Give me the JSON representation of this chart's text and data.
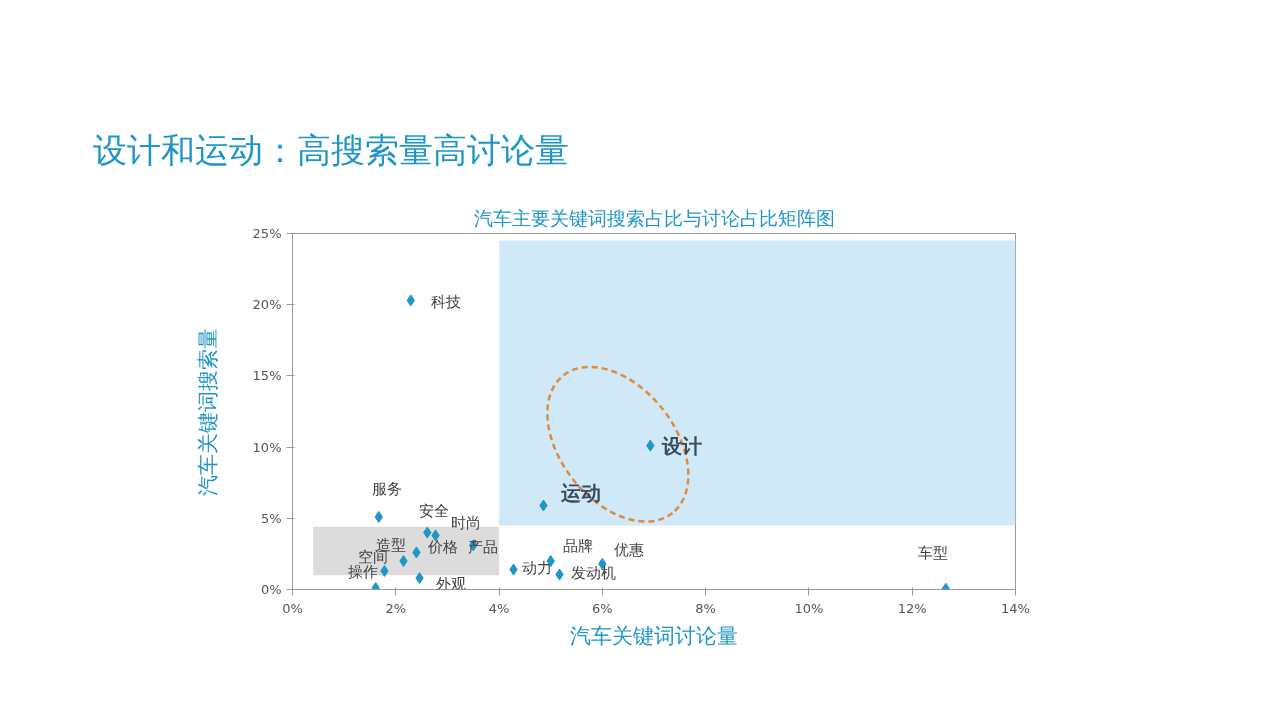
{
  "chart_data": {
    "type": "scatter",
    "title": "设计和运动：高搜索量高讨论量",
    "subtitle": "汽车主要关键词搜索占比与讨论占比矩阵图",
    "xlabel": "汽车关键词讨论量",
    "ylabel": "汽车关键词搜索量",
    "x": [
      2.29,
      6.93,
      4.86,
      1.67,
      2.61,
      2.77,
      3.5,
      2.4,
      2.15,
      1.78,
      1.61,
      2.46,
      4.28,
      5.0,
      5.17,
      6.0,
      12.65
    ],
    "series": [
      {
        "color": "#1f96c8",
        "values": [
          20.3,
          10.1,
          5.9,
          5.1,
          4.0,
          3.8,
          3.1,
          2.6,
          2.0,
          1.3,
          0.1,
          0.8,
          1.4,
          2.0,
          1.05,
          1.8,
          0.05
        ]
      }
    ],
    "marker": "diamond",
    "grid": false,
    "xlim": [
      0,
      14
    ],
    "ylim": [
      0,
      25
    ],
    "xticks": [
      {
        "value": 0,
        "label": "0%"
      },
      {
        "value": 2,
        "label": "2%"
      },
      {
        "value": 4,
        "label": "4%"
      },
      {
        "value": 6,
        "label": "6%"
      },
      {
        "value": 8,
        "label": "8%"
      },
      {
        "value": 10,
        "label": "10%"
      },
      {
        "value": 12,
        "label": "12%"
      },
      {
        "value": 14,
        "label": "14%"
      }
    ],
    "yticks": [
      {
        "value": 0,
        "label": "0%"
      },
      {
        "value": 5,
        "label": "5%"
      },
      {
        "value": 10,
        "label": "10%"
      },
      {
        "value": 15,
        "label": "15%"
      },
      {
        "value": 20,
        "label": "20%"
      },
      {
        "value": 25,
        "label": "25%"
      }
    ],
    "bands": [
      {
        "axis": "x",
        "from": 4.0,
        "to": 14.0,
        "color": "#cfe9f9"
      },
      {
        "axis": "x",
        "from": 0.4,
        "to": 4.0,
        "color": "#dcdcdc"
      }
    ],
    "annotations": [
      {
        "text": "科技",
        "x": 2.29,
        "y": 20.3
      },
      {
        "text": "设计",
        "x": 6.93,
        "y": 10.1
      },
      {
        "text": "运动",
        "x": 4.86,
        "y": 5.9
      },
      {
        "text": "服务",
        "x": 1.67,
        "y": 5.1
      },
      {
        "text": "安全",
        "x": 2.61,
        "y": 4.0
      },
      {
        "text": "时尚",
        "x": 2.77,
        "y": 3.8
      },
      {
        "text": "产品",
        "x": 3.5,
        "y": 3.1
      },
      {
        "text": "价格",
        "x": 2.4,
        "y": 2.6
      },
      {
        "text": "造型",
        "x": 2.15,
        "y": 2.0
      },
      {
        "text": "空间",
        "x": 1.78,
        "y": 1.3
      },
      {
        "text": "操作",
        "x": 1.61,
        "y": 0.1
      },
      {
        "text": "外观",
        "x": 2.46,
        "y": 0.8
      },
      {
        "text": "动力",
        "x": 4.28,
        "y": 1.4
      },
      {
        "text": "品牌",
        "x": 5.0,
        "y": 2.0
      },
      {
        "text": "发动机",
        "x": 5.17,
        "y": 1.05
      },
      {
        "text": "优惠",
        "x": 6.0,
        "y": 1.8
      },
      {
        "text": "车型",
        "x": 12.65,
        "y": 0.05
      }
    ]
  }
}
